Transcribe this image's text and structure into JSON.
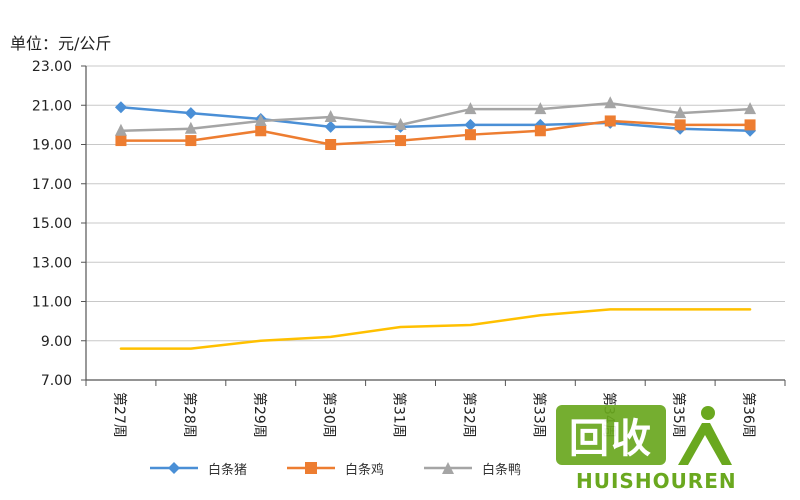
{
  "unit_label": "单位：元/公斤",
  "colors": {
    "axis": "#555555",
    "grid": "#c8c8c8",
    "text": "#222222",
    "watermark": "#6aa81f"
  },
  "chart_data": {
    "type": "line",
    "title": "",
    "xlabel": "",
    "ylabel": "",
    "ylim": [
      7,
      23
    ],
    "yticks": [
      "7.00",
      "9.00",
      "11.00",
      "13.00",
      "15.00",
      "17.00",
      "19.00",
      "21.00",
      "23.00"
    ],
    "grid": true,
    "legend_position": "bottom",
    "categories": [
      "第27周",
      "第28周",
      "第29周",
      "第30周",
      "第31周",
      "第32周",
      "第33周",
      "第34周",
      "第35周",
      "第36周"
    ],
    "series": [
      {
        "name": "白条猪",
        "color": "#4a8fd6",
        "marker": "diamond",
        "values": [
          20.9,
          20.6,
          20.3,
          19.9,
          19.9,
          20.0,
          20.0,
          20.1,
          19.8,
          19.7
        ]
      },
      {
        "name": "白条鸡",
        "color": "#ed7d31",
        "marker": "square",
        "values": [
          19.2,
          19.2,
          19.7,
          19.0,
          19.2,
          19.5,
          19.7,
          20.2,
          20.0,
          20.0
        ]
      },
      {
        "name": "白条鸭",
        "color": "#a5a5a5",
        "marker": "triangle",
        "values": [
          19.7,
          19.8,
          20.2,
          20.4,
          20.0,
          20.8,
          20.8,
          21.1,
          20.6,
          20.8
        ]
      },
      {
        "name": "",
        "color": "#ffc000",
        "marker": "none",
        "values": [
          8.6,
          8.6,
          9.0,
          9.2,
          9.7,
          9.8,
          10.3,
          10.6,
          10.6,
          10.6
        ]
      }
    ]
  },
  "watermark": {
    "logo_text": "回收",
    "brand_text": "HUISHOUREN"
  }
}
